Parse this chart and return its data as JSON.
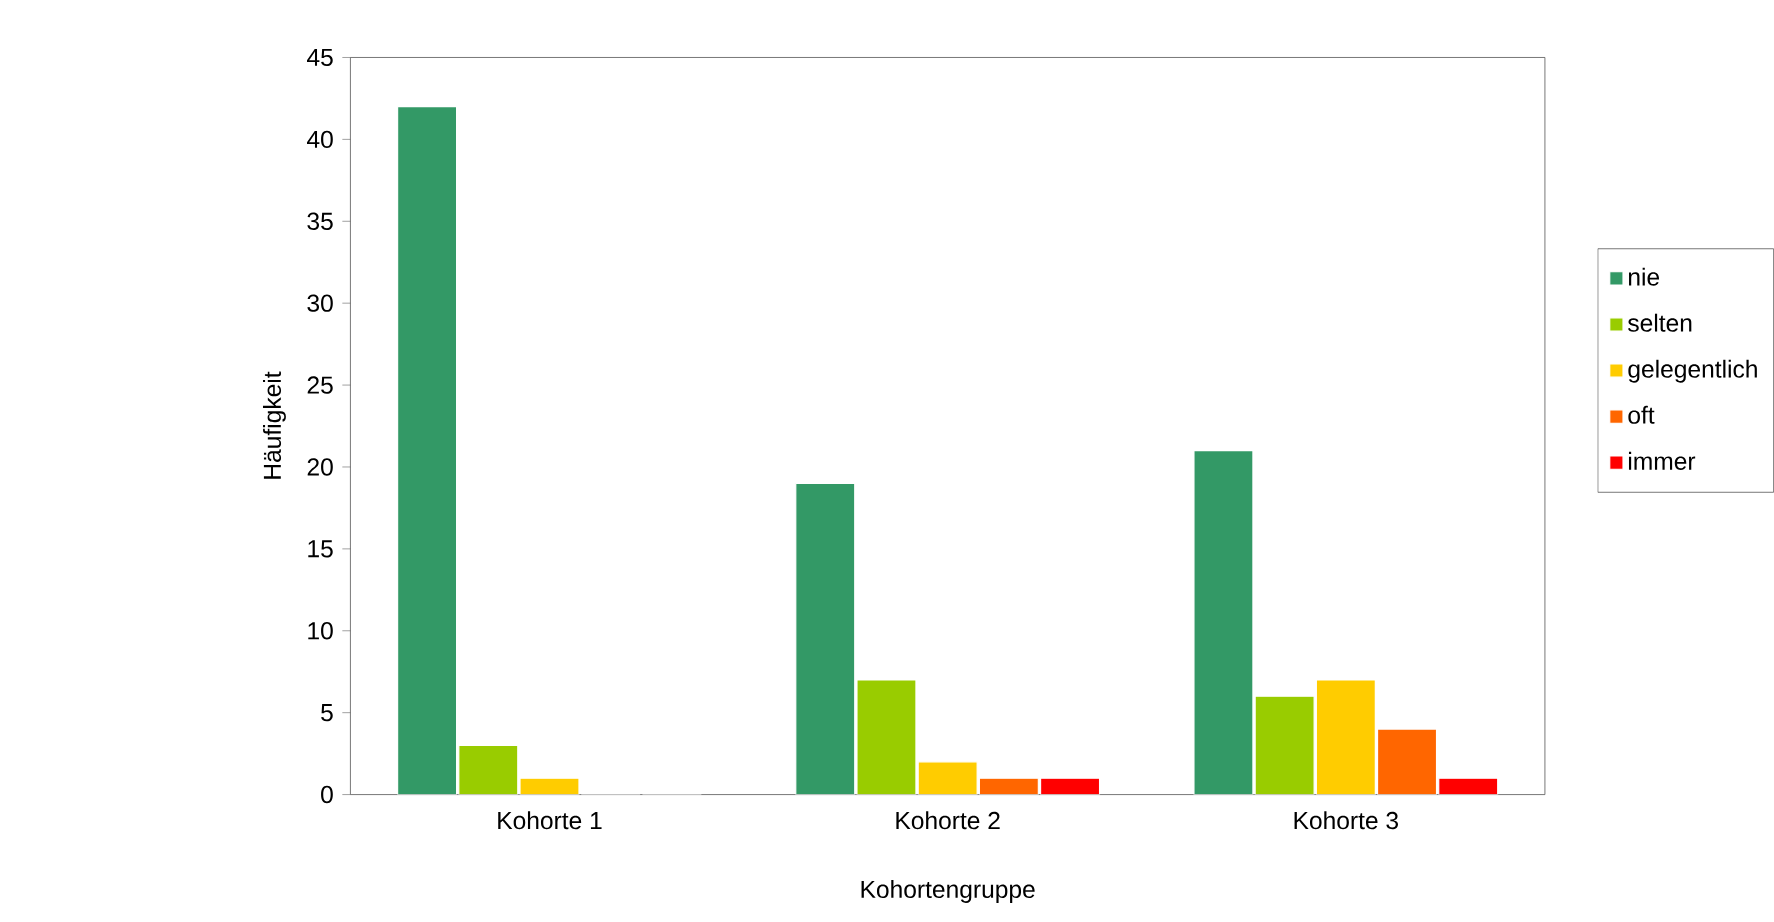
{
  "chart_data": {
    "type": "bar",
    "xlabel": "Kohortengruppe",
    "ylabel": "Häufigkeit",
    "categories": [
      "Kohorte 1",
      "Kohorte 2",
      "Kohorte 3"
    ],
    "series": [
      {
        "name": "nie",
        "color": "#339966",
        "values": [
          42,
          19,
          21
        ]
      },
      {
        "name": "selten",
        "color": "#99cc00",
        "values": [
          3,
          7,
          6
        ]
      },
      {
        "name": "gelegentlich",
        "color": "#ffcc00",
        "values": [
          1,
          2,
          7
        ]
      },
      {
        "name": "oft",
        "color": "#ff6600",
        "values": [
          0,
          1,
          4
        ]
      },
      {
        "name": "immer",
        "color": "#ff0000",
        "values": [
          0,
          1,
          1
        ]
      }
    ],
    "ylim": [
      0,
      45
    ],
    "yticks": [
      0,
      5,
      10,
      15,
      20,
      25,
      30,
      35,
      40,
      45
    ],
    "grid": false,
    "legend": "right"
  }
}
